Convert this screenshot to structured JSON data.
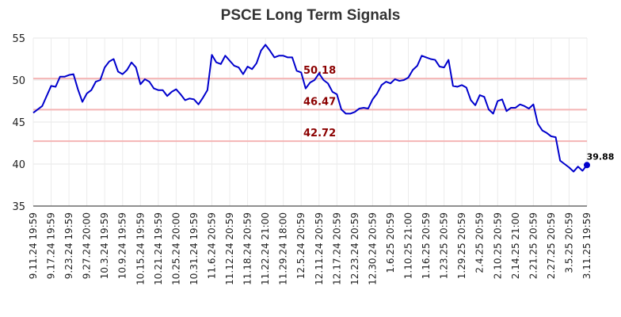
{
  "chart_data": {
    "type": "line",
    "title": "PSCE Long Term Signals",
    "xlabel": "",
    "ylabel": "",
    "ylim": [
      35,
      55
    ],
    "yticks": [
      35,
      40,
      45,
      50,
      55
    ],
    "grid": true,
    "legend": "none",
    "x_tick_labels": [
      "9.11.24 19:59",
      "9.17.24 19:59",
      "9.23.24 19:59",
      "9.27.24 20:00",
      "10.3.24 19:59",
      "10.9.24 19:59",
      "10.15.24 19:59",
      "10.21.24 19:59",
      "10.25.24 20:00",
      "10.31.24 19:59",
      "11.6.24 20:59",
      "11.12.24 20:59",
      "11.18.24 20:59",
      "11.22.24 21:00",
      "11.29.24 18:00",
      "12.5.24 20:59",
      "12.11.24 20:59",
      "12.17.24 20:59",
      "12.23.24 20:59",
      "12.30.24 20:59",
      "1.6.25 20:59",
      "1.10.25 21:00",
      "1.16.25 20:59",
      "1.23.25 20:59",
      "1.29.25 20:59",
      "2.4.25 20:59",
      "2.10.25 20:59",
      "2.14.25 21:00",
      "2.21.25 20:59",
      "2.27.25 20:59",
      "3.5.25 20:59",
      "3.11.25 19:59"
    ],
    "series": [
      {
        "color": "#0000cc",
        "values": [
          46.1,
          46.5,
          46.9,
          48.1,
          49.3,
          49.2,
          50.4,
          50.4,
          50.6,
          50.7,
          48.9,
          47.4,
          48.4,
          48.8,
          49.8,
          50.0,
          51.5,
          52.2,
          52.5,
          51.0,
          50.7,
          51.2,
          52.1,
          51.5,
          49.5,
          50.1,
          49.8,
          49.0,
          48.8,
          48.8,
          48.1,
          48.6,
          48.9,
          48.3,
          47.6,
          47.8,
          47.7,
          47.1,
          47.9,
          48.8,
          53.0,
          52.1,
          51.9,
          52.9,
          52.3,
          51.7,
          51.5,
          50.7,
          51.6,
          51.3,
          52.0,
          53.5,
          54.2,
          53.5,
          52.7,
          52.9,
          52.9,
          52.7,
          52.7,
          51.1,
          50.9,
          49.0,
          49.7,
          50.0,
          50.8,
          50.0,
          49.6,
          48.6,
          48.3,
          46.5,
          46.0,
          46.0,
          46.2,
          46.6,
          46.7,
          46.6,
          47.7,
          48.4,
          49.4,
          49.8,
          49.6,
          50.1,
          49.9,
          50.0,
          50.3,
          51.2,
          51.7,
          52.9,
          52.7,
          52.5,
          52.4,
          51.6,
          51.5,
          52.4,
          49.3,
          49.2,
          49.4,
          49.1,
          47.6,
          47.0,
          48.2,
          48.0,
          46.5,
          46.0,
          47.5,
          47.7,
          46.3,
          46.7,
          46.7,
          47.1,
          46.9,
          46.6,
          47.1,
          44.8,
          44.0,
          43.7,
          43.3,
          43.2,
          40.4,
          40.0,
          39.6,
          39.1,
          39.7,
          39.2,
          39.88
        ]
      }
    ],
    "signal_lines": [
      {
        "value": 50.18,
        "label": "50.18",
        "color": "#f4b5b5",
        "label_color": "#8b0000"
      },
      {
        "value": 46.47,
        "label": "46.47",
        "color": "#f4b5b5",
        "label_color": "#8b0000"
      },
      {
        "value": 42.72,
        "label": "42.72",
        "color": "#f4b5b5",
        "label_color": "#8b0000"
      }
    ],
    "last_value": {
      "value": 39.88,
      "label": "39.88"
    }
  }
}
